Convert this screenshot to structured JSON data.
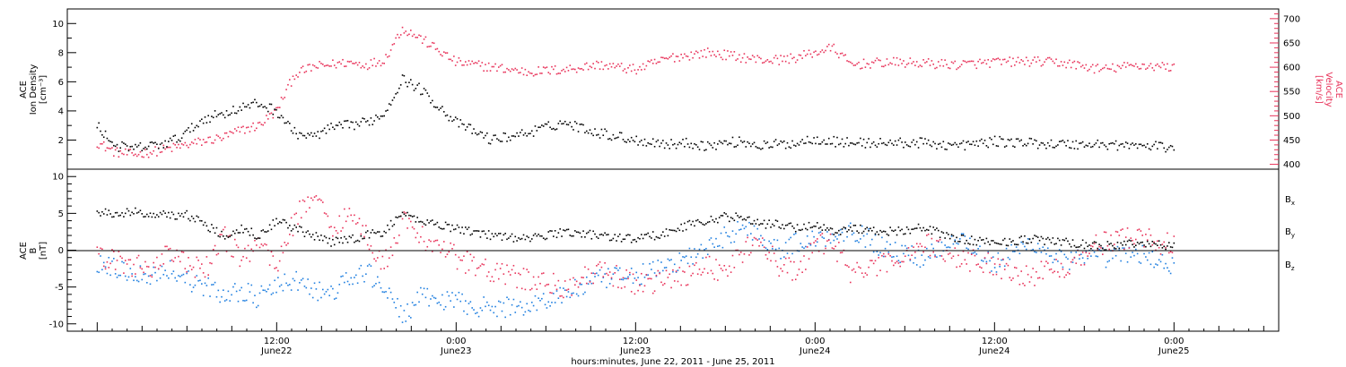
{
  "chart_data": [
    {
      "type": "scatter",
      "panel": "top",
      "ylabel": {
        "lines": [
          "ACE",
          "Ion Density",
          "[cm⁻³]"
        ]
      },
      "ylabel_right": {
        "lines": [
          "ACE",
          "Velocity",
          "[km/s]"
        ]
      },
      "ylim": [
        0,
        11
      ],
      "ylim_right": [
        390,
        720
      ],
      "yticks": [
        "2",
        "4",
        "6",
        "8",
        "10"
      ],
      "yticks_values": [
        2,
        4,
        6,
        8,
        10
      ],
      "yticks_right": [
        "400",
        "450",
        "500",
        "550",
        "600",
        "650",
        "700"
      ],
      "yticks_right_values": [
        400,
        450,
        500,
        550,
        600,
        650,
        700
      ],
      "series": [
        {
          "color": "#000000",
          "axis": "left",
          "x": [
            0,
            0.05,
            0.1,
            0.15,
            0.2,
            0.25,
            0.3,
            0.35,
            0.4,
            0.45,
            0.5,
            0.55,
            0.6,
            0.65,
            0.7,
            0.75,
            0.8,
            0.85,
            0.9,
            1.0,
            1.1,
            1.2,
            1.3,
            1.4,
            1.5,
            1.6,
            1.65,
            1.7,
            1.75,
            1.8,
            1.85,
            1.9,
            1.95,
            2.0,
            2.05,
            2.1,
            2.2,
            2.3,
            2.4,
            2.5,
            2.6,
            2.7,
            2.8,
            2.9,
            3.0
          ],
          "y": [
            3.0,
            1.6,
            1.4,
            1.6,
            1.8,
            2.5,
            3.5,
            3.8,
            4.2,
            4.5,
            4.0,
            2.5,
            2.2,
            2.8,
            3.0,
            3.2,
            3.8,
            6.2,
            5.5,
            3.2,
            2.0,
            2.5,
            3.2,
            2.5,
            2.0,
            1.7,
            1.8,
            1.6,
            1.8,
            1.9,
            1.6,
            1.7,
            1.8,
            2.1,
            1.9,
            1.8,
            1.8,
            1.8,
            1.6,
            1.9,
            1.8,
            1.7,
            1.7,
            1.6,
            1.5
          ]
        },
        {
          "color": "#e8335a",
          "axis": "right",
          "x": [
            0,
            0.05,
            0.1,
            0.15,
            0.2,
            0.25,
            0.3,
            0.35,
            0.4,
            0.45,
            0.5,
            0.55,
            0.6,
            0.65,
            0.7,
            0.75,
            0.8,
            0.85,
            0.9,
            1.0,
            1.1,
            1.2,
            1.3,
            1.4,
            1.5,
            1.6,
            1.65,
            1.7,
            1.75,
            1.8,
            1.85,
            1.9,
            1.95,
            2.0,
            2.05,
            2.1,
            2.2,
            2.3,
            2.4,
            2.5,
            2.6,
            2.7,
            2.8,
            2.9,
            3.0
          ],
          "y": [
            445,
            425,
            420,
            425,
            432,
            440,
            448,
            455,
            470,
            480,
            510,
            585,
            600,
            605,
            610,
            605,
            615,
            680,
            660,
            610,
            600,
            590,
            595,
            605,
            595,
            620,
            625,
            630,
            625,
            620,
            615,
            615,
            620,
            630,
            640,
            605,
            610,
            608,
            605,
            610,
            612,
            608,
            595,
            604,
            600
          ]
        }
      ]
    },
    {
      "type": "scatter",
      "panel": "bottom",
      "ylabel": {
        "lines": [
          "ACE",
          "B",
          "[nT]"
        ]
      },
      "ylim": [
        -11,
        11
      ],
      "yticks": [
        "-10",
        "-5",
        "0",
        "5",
        "10"
      ],
      "yticks_values": [
        -10,
        -5,
        0,
        5,
        10
      ],
      "xlabel": "hours:minutes, June 22, 2011 - June 25, 2011",
      "xticks": [
        {
          "x": 0.5,
          "time": "12:00",
          "date": "June22"
        },
        {
          "x": 1.0,
          "time": "0:00",
          "date": "June23"
        },
        {
          "x": 1.5,
          "time": "12:00",
          "date": "June23"
        },
        {
          "x": 2.0,
          "time": "0:00",
          "date": "June24"
        },
        {
          "x": 2.5,
          "time": "12:00",
          "date": "June24"
        },
        {
          "x": 3.0,
          "time": "0:00",
          "date": "June25"
        }
      ],
      "xlim": [
        -0.0833,
        3.2917
      ],
      "legend_position": "right",
      "series": [
        {
          "name": "Bx",
          "color": "#000000",
          "x": [
            0,
            0.05,
            0.1,
            0.15,
            0.2,
            0.25,
            0.3,
            0.35,
            0.4,
            0.45,
            0.5,
            0.55,
            0.6,
            0.65,
            0.7,
            0.75,
            0.8,
            0.85,
            0.9,
            1.0,
            1.1,
            1.2,
            1.3,
            1.4,
            1.5,
            1.6,
            1.65,
            1.7,
            1.75,
            1.8,
            1.85,
            1.9,
            1.95,
            2.0,
            2.05,
            2.1,
            2.2,
            2.3,
            2.4,
            2.5,
            2.6,
            2.7,
            2.8,
            2.9,
            3.0
          ],
          "y": [
            5.0,
            5.0,
            5.2,
            4.8,
            4.8,
            4.8,
            3.5,
            2.0,
            3.0,
            2.0,
            4.0,
            3.0,
            2.0,
            1.0,
            1.5,
            2.0,
            2.5,
            5.0,
            4.0,
            3.0,
            2.0,
            1.5,
            2.5,
            2.0,
            1.5,
            2.5,
            3.5,
            4.0,
            4.5,
            4.5,
            3.5,
            3.5,
            3.0,
            3.5,
            2.5,
            3.0,
            2.5,
            3.0,
            1.5,
            1.0,
            1.5,
            1.0,
            0.5,
            1.0,
            0.5
          ]
        },
        {
          "name": "By",
          "color": "#1f7fe0",
          "x": [
            0,
            0.05,
            0.1,
            0.15,
            0.2,
            0.25,
            0.3,
            0.35,
            0.4,
            0.45,
            0.5,
            0.55,
            0.6,
            0.65,
            0.7,
            0.75,
            0.8,
            0.85,
            0.9,
            1.0,
            1.1,
            1.2,
            1.3,
            1.4,
            1.5,
            1.6,
            1.65,
            1.7,
            1.75,
            1.8,
            1.85,
            1.9,
            1.95,
            2.0,
            2.05,
            2.1,
            2.2,
            2.3,
            2.4,
            2.5,
            2.6,
            2.7,
            2.8,
            2.9,
            3.0
          ],
          "y": [
            -2.0,
            -2.5,
            -3.0,
            -3.5,
            -2.5,
            -4.0,
            -5.0,
            -6.0,
            -5.5,
            -6.5,
            -5.0,
            -4.0,
            -5.5,
            -6.0,
            -4.0,
            -3.0,
            -5.0,
            -9.0,
            -6.5,
            -7.0,
            -8.0,
            -7.5,
            -6.0,
            -4.0,
            -3.5,
            -2.0,
            -1.0,
            0.0,
            2.0,
            3.0,
            2.0,
            0.0,
            1.0,
            1.5,
            2.0,
            3.0,
            0.0,
            -1.0,
            2.0,
            -2.0,
            1.0,
            -1.5,
            -1.0,
            -0.5,
            -2.0
          ]
        },
        {
          "name": "Bz",
          "color": "#e8335a",
          "x": [
            0,
            0.05,
            0.1,
            0.15,
            0.2,
            0.25,
            0.3,
            0.35,
            0.4,
            0.45,
            0.5,
            0.55,
            0.6,
            0.65,
            0.7,
            0.75,
            0.8,
            0.85,
            0.9,
            1.0,
            1.1,
            1.2,
            1.3,
            1.4,
            1.5,
            1.6,
            1.65,
            1.7,
            1.75,
            1.8,
            1.85,
            1.9,
            1.95,
            2.0,
            2.05,
            2.1,
            2.2,
            2.3,
            2.4,
            2.5,
            2.6,
            2.7,
            2.8,
            2.9,
            3.0
          ],
          "y": [
            -1.0,
            -1.5,
            -2.0,
            -2.5,
            0.0,
            -2.0,
            -3.0,
            2.0,
            -1.0,
            1.0,
            -2.0,
            4.0,
            8.0,
            3.0,
            5.0,
            2.0,
            -2.0,
            4.0,
            2.0,
            -1.0,
            -3.0,
            -4.0,
            -5.0,
            -3.0,
            -4.5,
            -4.0,
            -3.0,
            -2.0,
            -3.0,
            0.0,
            1.0,
            -2.0,
            -3.0,
            0.5,
            1.0,
            -3.0,
            -2.0,
            1.0,
            -1.0,
            -2.0,
            -3.5,
            -2.0,
            1.0,
            2.0,
            0.5
          ]
        }
      ]
    }
  ]
}
